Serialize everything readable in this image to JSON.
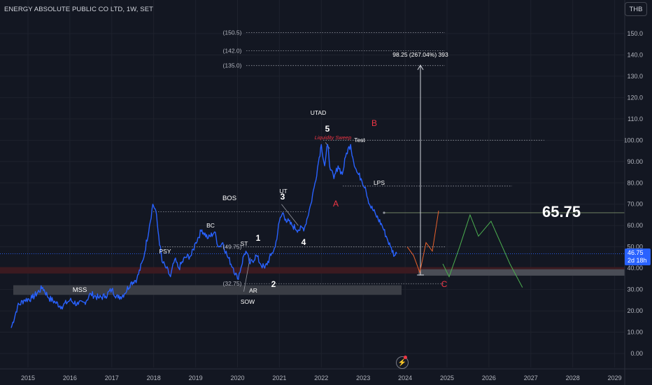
{
  "header": {
    "title": "ENERGY ABSOLUTE PUBLIC CO LTD, 1W, SET",
    "currency": "THB"
  },
  "price_tag": {
    "price": "46.75",
    "countdown": "2d 18h"
  },
  "target_label": "65.75",
  "measure_label": "98.25 (267.04%) 393",
  "fib_labels": [
    "(150.5)",
    "(142.0)",
    "(135.0)",
    "(49.75)",
    "(32.75)"
  ],
  "wyckoff": [
    "PSY",
    "BC",
    "ST",
    "AR",
    "SOW",
    "UT",
    "UTAD",
    "Test",
    "LPS",
    "BOS",
    "MSS"
  ],
  "annotation_liquidity": "Liquidity Sweep",
  "waves": {
    "impulse": [
      "1",
      "2",
      "3",
      "4",
      "5"
    ],
    "corrective": [
      "A",
      "B",
      "C"
    ]
  },
  "colors": {
    "background": "#131722",
    "price_line": "#2962ff",
    "projection_orange": "#e8622c",
    "projection_green": "#4caf50",
    "zone_red": "#4a1c22",
    "zone_gray": "#3a3d45",
    "wave_red": "#f23645"
  },
  "chart_data": {
    "type": "line",
    "title": "ENERGY ABSOLUTE PUBLIC CO LTD, 1W, SET",
    "x_ticks": [
      "2015",
      "2016",
      "2017",
      "2018",
      "2019",
      "2020",
      "2021",
      "2022",
      "2023",
      "2024",
      "2025",
      "2026",
      "2027",
      "2028",
      "2029"
    ],
    "y_ticks": [
      "0.00",
      "10.00",
      "20.00",
      "30.00",
      "40.00",
      "50.00",
      "60.00",
      "70.00",
      "80.00",
      "90.00",
      "100.00",
      "110.0",
      "120.0",
      "130.0",
      "140.0",
      "150.0"
    ],
    "ylim": [
      -2,
      165
    ],
    "xlim": [
      2014.6,
      2029.3
    ],
    "series": [
      {
        "x": [
          2014.6,
          2014.75,
          2014.9,
          2015.1,
          2015.35,
          2015.5,
          2015.65,
          2015.8,
          2016.0,
          2016.2,
          2016.35,
          2016.5,
          2016.7,
          2016.85,
          2017.0,
          2017.15,
          2017.3,
          2017.45,
          2017.6,
          2017.75,
          2017.9,
          2017.98,
          2018.05,
          2018.12,
          2018.2,
          2018.3,
          2018.4,
          2018.5,
          2018.6,
          2018.75,
          2018.9,
          2019.0,
          2019.15,
          2019.3,
          2019.45,
          2019.55,
          2019.65,
          2019.75,
          2019.9,
          2020.0,
          2020.08,
          2020.15,
          2020.2,
          2020.3,
          2020.45,
          2020.55,
          2020.65,
          2020.8,
          2020.9,
          2021.0,
          2021.08,
          2021.15,
          2021.3,
          2021.45,
          2021.6,
          2021.75,
          2021.85,
          2021.95,
          2022.0,
          2022.08,
          2022.15,
          2022.22,
          2022.3,
          2022.4,
          2022.5,
          2022.6,
          2022.7,
          2022.75,
          2022.85,
          2022.95,
          2023.05,
          2023.15,
          2023.3,
          2023.45,
          2023.55,
          2023.65,
          2023.75,
          2023.8
        ],
        "values": [
          12,
          22,
          25,
          26,
          31,
          26,
          24,
          22,
          25,
          23,
          24,
          28,
          26,
          27,
          30,
          26,
          28,
          33,
          35,
          44,
          60,
          70,
          67,
          55,
          43,
          40,
          36,
          44,
          40,
          45,
          46,
          52,
          58,
          54,
          57,
          50,
          52,
          46,
          40,
          35,
          40,
          46,
          48,
          42,
          46,
          42,
          40,
          46,
          50,
          62,
          66,
          63,
          60,
          58,
          59,
          70,
          80,
          92,
          98,
          88,
          98,
          86,
          82,
          88,
          84,
          94,
          98,
          92,
          85,
          82,
          78,
          70,
          65,
          60,
          55,
          50,
          46,
          47
        ],
        "color": "#2962ff"
      }
    ],
    "projections": [
      {
        "color": "#e8622c",
        "x": [
          2024.05,
          2024.2,
          2024.35,
          2024.5,
          2024.65,
          2024.8
        ],
        "values": [
          50,
          46,
          38,
          52,
          48,
          67
        ]
      },
      {
        "color": "#4caf50",
        "x": [
          2024.9,
          2025.05,
          2025.3,
          2025.55,
          2025.75,
          2026.05,
          2026.5,
          2026.8
        ],
        "values": [
          42,
          36,
          50,
          65,
          55,
          62,
          42,
          31
        ]
      }
    ],
    "horizontal_levels": [
      150.5,
      142.0,
      135.0,
      100.0,
      78.5,
      66.0,
      49.75,
      32.75
    ],
    "zones": [
      {
        "from": 37,
        "to": 40,
        "label": ""
      },
      {
        "from": 28,
        "to": 32,
        "label": "MSS"
      }
    ],
    "grid": true
  }
}
